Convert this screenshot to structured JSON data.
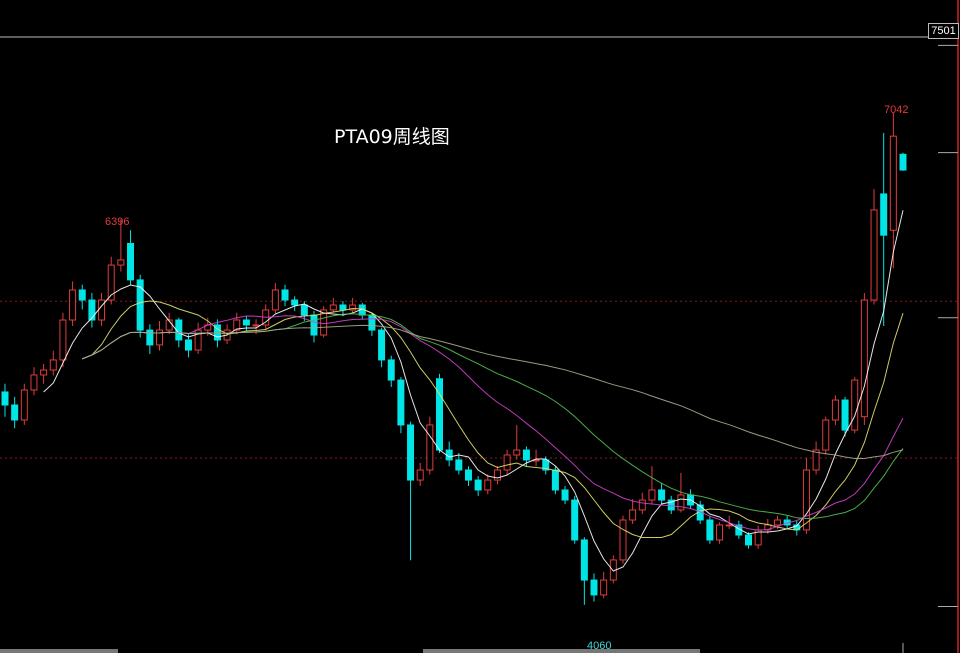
{
  "chart_data": {
    "type": "candlestick",
    "title": "PTA09周线图",
    "ylim": [
      4000,
      7501
    ],
    "axis_max_label": "7501",
    "annotations": {
      "high_left": "6396",
      "high_right": "7042",
      "low": "4060"
    },
    "colors": {
      "up": "#e03c3c",
      "down": "#00e5e5",
      "axis": "#a01818",
      "grid": "#8a1a1a",
      "ma": [
        "#ffffff",
        "#e6e070",
        "#d040d0",
        "#50c050",
        "#a8a890"
      ]
    },
    "moving_averages": [
      5,
      10,
      20,
      30,
      60
    ],
    "candles_ohlc": [
      [
        5350,
        5400,
        5200,
        5271
      ],
      [
        5271,
        5320,
        5130,
        5180
      ],
      [
        5180,
        5400,
        5150,
        5362
      ],
      [
        5362,
        5500,
        5330,
        5453
      ],
      [
        5453,
        5520,
        5400,
        5483
      ],
      [
        5483,
        5600,
        5450,
        5544
      ],
      [
        5544,
        5830,
        5500,
        5786
      ],
      [
        5786,
        6020,
        5750,
        5968
      ],
      [
        5968,
        6000,
        5850,
        5907
      ],
      [
        5907,
        5950,
        5740,
        5786
      ],
      [
        5786,
        5950,
        5750,
        5907
      ],
      [
        5907,
        6170,
        5880,
        6119
      ],
      [
        6119,
        6396,
        6080,
        6150
      ],
      [
        6250,
        6330,
        6000,
        6029
      ],
      [
        6029,
        6060,
        5680,
        5725
      ],
      [
        5725,
        5760,
        5580,
        5635
      ],
      [
        5635,
        5780,
        5600,
        5725
      ],
      [
        5725,
        5830,
        5700,
        5786
      ],
      [
        5786,
        5800,
        5620,
        5665
      ],
      [
        5665,
        5700,
        5560,
        5604
      ],
      [
        5604,
        5770,
        5580,
        5725
      ],
      [
        5725,
        5800,
        5690,
        5756
      ],
      [
        5756,
        5790,
        5620,
        5665
      ],
      [
        5665,
        5760,
        5640,
        5725
      ],
      [
        5725,
        5830,
        5700,
        5786
      ],
      [
        5786,
        5810,
        5720,
        5756
      ],
      [
        5756,
        5790,
        5700,
        5756
      ],
      [
        5756,
        5880,
        5730,
        5847
      ],
      [
        5847,
        6010,
        5820,
        5968
      ],
      [
        5968,
        6000,
        5870,
        5907
      ],
      [
        5907,
        5930,
        5840,
        5877
      ],
      [
        5877,
        5900,
        5780,
        5816
      ],
      [
        5816,
        5840,
        5650,
        5695
      ],
      [
        5695,
        5870,
        5680,
        5847
      ],
      [
        5847,
        5920,
        5830,
        5877
      ],
      [
        5877,
        5900,
        5810,
        5847
      ],
      [
        5847,
        5920,
        5830,
        5877
      ],
      [
        5877,
        5890,
        5790,
        5816
      ],
      [
        5816,
        5830,
        5690,
        5725
      ],
      [
        5725,
        5740,
        5500,
        5544
      ],
      [
        5544,
        5570,
        5380,
        5422
      ],
      [
        5422,
        5440,
        5100,
        5150
      ],
      [
        5150,
        5170,
        4330,
        4816
      ],
      [
        4816,
        4920,
        4780,
        4877
      ],
      [
        4877,
        5200,
        4850,
        5150
      ],
      [
        5430,
        5460,
        4980,
        4998
      ],
      [
        4998,
        5050,
        4900,
        4938
      ],
      [
        4938,
        4980,
        4850,
        4877
      ],
      [
        4877,
        4900,
        4780,
        4816
      ],
      [
        4816,
        4840,
        4720,
        4756
      ],
      [
        4756,
        4850,
        4730,
        4816
      ],
      [
        4816,
        4900,
        4790,
        4877
      ],
      [
        4877,
        5000,
        4850,
        4968
      ],
      [
        4968,
        5150,
        4940,
        4998
      ],
      [
        4998,
        5020,
        4900,
        4938
      ],
      [
        4938,
        5000,
        4900,
        4938
      ],
      [
        4938,
        4960,
        4850,
        4877
      ],
      [
        4877,
        4900,
        4730,
        4756
      ],
      [
        4756,
        4780,
        4670,
        4695
      ],
      [
        4695,
        4720,
        4430,
        4453
      ],
      [
        4453,
        4470,
        4060,
        4210
      ],
      [
        4210,
        4250,
        4080,
        4120
      ],
      [
        4120,
        4260,
        4100,
        4210
      ],
      [
        4210,
        4360,
        4190,
        4332
      ],
      [
        4332,
        4600,
        4310,
        4574
      ],
      [
        4574,
        4700,
        4550,
        4635
      ],
      [
        4635,
        4740,
        4610,
        4695
      ],
      [
        4695,
        4900,
        4670,
        4756
      ],
      [
        4756,
        4800,
        4670,
        4695
      ],
      [
        4695,
        4720,
        4610,
        4635
      ],
      [
        4635,
        4860,
        4620,
        4726
      ],
      [
        4726,
        4760,
        4640,
        4665
      ],
      [
        4665,
        4690,
        4550,
        4574
      ],
      [
        4574,
        4600,
        4430,
        4453
      ],
      [
        4453,
        4560,
        4430,
        4544
      ],
      [
        4544,
        4600,
        4520,
        4544
      ],
      [
        4544,
        4570,
        4460,
        4483
      ],
      [
        4483,
        4500,
        4400,
        4423
      ],
      [
        4423,
        4540,
        4400,
        4514
      ],
      [
        4514,
        4580,
        4490,
        4544
      ],
      [
        4544,
        4600,
        4520,
        4574
      ],
      [
        4574,
        4600,
        4520,
        4544
      ],
      [
        4544,
        4570,
        4480,
        4514
      ],
      [
        4514,
        4950,
        4490,
        4877
      ],
      [
        4877,
        5050,
        4850,
        4998
      ],
      [
        4998,
        5200,
        4970,
        5180
      ],
      [
        5180,
        5330,
        5150,
        5301
      ],
      [
        5301,
        5320,
        5080,
        5119
      ],
      [
        5119,
        5440,
        5100,
        5422
      ],
      [
        5200,
        5950,
        5150,
        5907
      ],
      [
        5907,
        6580,
        5880,
        6453
      ],
      [
        6550,
        6920,
        5750,
        6300
      ],
      [
        6330,
        7042,
        6100,
        6900
      ],
      [
        6790,
        6800,
        6690,
        6695
      ]
    ]
  }
}
